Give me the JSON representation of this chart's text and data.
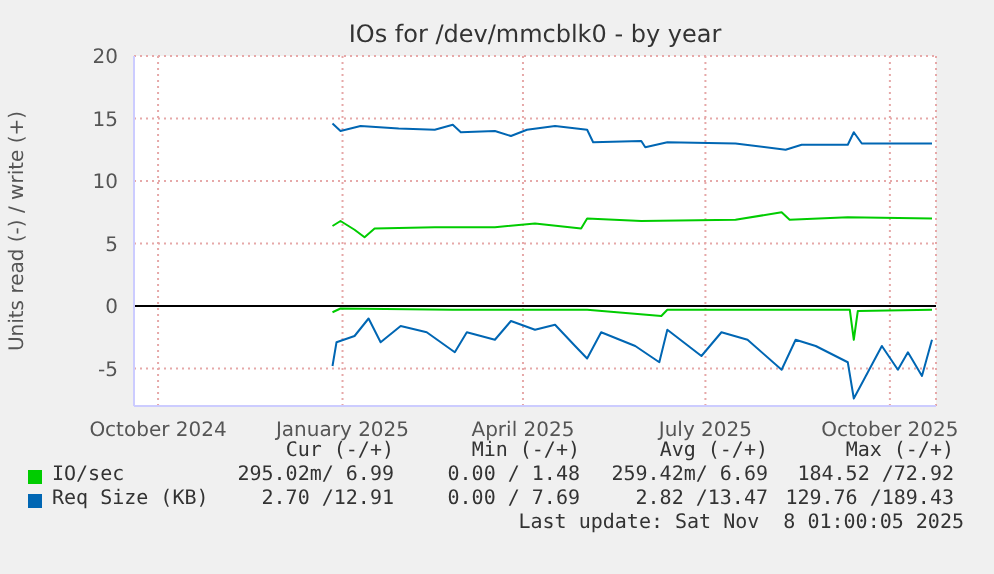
{
  "chart_data": {
    "type": "line",
    "title": "IOs for /dev/mmcblk0 - by year",
    "ylabel": "Units read (-) / write (+)",
    "xlim": [
      "2024-10-04",
      "2025-11-08"
    ],
    "xticks": [
      {
        "value": "2024-10-16",
        "label": "October 2024"
      },
      {
        "value": "2025-01-16",
        "label": "January 2025"
      },
      {
        "value": "2025-04-16",
        "label": "April 2025"
      },
      {
        "value": "2025-07-16",
        "label": "July 2025"
      },
      {
        "value": "2025-10-16",
        "label": "October 2025"
      }
    ],
    "ylim": [
      -8,
      20
    ],
    "yticks": [
      -5,
      0,
      5,
      10,
      15,
      20
    ],
    "grid": true,
    "legend": "bottom",
    "marker": "none",
    "line_style": "solid",
    "ref_lines": [
      {
        "axis": "y",
        "value": 0,
        "color": "#000000"
      }
    ],
    "series": [
      {
        "name": "IO/sec",
        "color": "#00cc00",
        "x": [
          "2025-01-11",
          "2025-01-15",
          "2025-01-22",
          "2025-01-27",
          "2025-02-01",
          "2025-03-03",
          "2025-04-02",
          "2025-04-22",
          "2025-05-15",
          "2025-05-18",
          "2025-06-14",
          "2025-07-31",
          "2025-08-23",
          "2025-08-27",
          "2025-09-25",
          "2025-11-06"
        ],
        "values": [
          6.4,
          6.8,
          6.1,
          5.5,
          6.2,
          6.3,
          6.3,
          6.6,
          6.2,
          7.0,
          6.8,
          6.9,
          7.5,
          6.9,
          7.1,
          7.0
        ]
      },
      {
        "color": "#00cc00",
        "x": [
          "2025-01-11",
          "2025-01-15",
          "2025-03-12",
          "2025-05-18",
          "2025-06-24",
          "2025-06-27",
          "2025-09-26",
          "2025-09-28",
          "2025-09-30",
          "2025-11-06"
        ],
        "values": [
          -0.5,
          -0.2,
          -0.3,
          -0.3,
          -0.8,
          -0.3,
          -0.3,
          -2.7,
          -0.4,
          -0.3
        ]
      },
      {
        "name": "Req Size (KB)",
        "color": "#0066b3",
        "x": [
          "2025-01-11",
          "2025-01-15",
          "2025-01-25",
          "2025-02-13",
          "2025-03-03",
          "2025-03-12",
          "2025-03-16",
          "2025-04-02",
          "2025-04-10",
          "2025-04-18",
          "2025-05-02",
          "2025-05-18",
          "2025-05-21",
          "2025-06-14",
          "2025-06-16",
          "2025-06-27",
          "2025-07-31",
          "2025-08-25",
          "2025-09-02",
          "2025-09-25",
          "2025-09-28",
          "2025-10-02",
          "2025-11-06"
        ],
        "values": [
          14.6,
          14.0,
          14.4,
          14.2,
          14.1,
          14.5,
          13.9,
          14.0,
          13.6,
          14.1,
          14.4,
          14.1,
          13.1,
          13.2,
          12.7,
          13.1,
          13.0,
          12.5,
          12.9,
          12.9,
          13.9,
          13.0,
          13.0
        ]
      },
      {
        "color": "#0066b3",
        "x": [
          "2025-01-11",
          "2025-01-13",
          "2025-01-22",
          "2025-01-29",
          "2025-02-04",
          "2025-02-14",
          "2025-02-27",
          "2025-03-13",
          "2025-03-19",
          "2025-04-02",
          "2025-04-10",
          "2025-04-22",
          "2025-05-02",
          "2025-05-12",
          "2025-05-18",
          "2025-05-25",
          "2025-06-11",
          "2025-06-23",
          "2025-06-27",
          "2025-07-14",
          "2025-07-24",
          "2025-08-06",
          "2025-08-23",
          "2025-08-30",
          "2025-09-09",
          "2025-09-25",
          "2025-09-28",
          "2025-10-05",
          "2025-10-12",
          "2025-10-20",
          "2025-10-25",
          "2025-11-01",
          "2025-11-06"
        ],
        "values": [
          -4.8,
          -2.9,
          -2.4,
          -1.0,
          -2.9,
          -1.6,
          -2.1,
          -3.7,
          -2.1,
          -2.7,
          -1.2,
          -1.9,
          -1.5,
          -3.2,
          -4.2,
          -2.1,
          -3.2,
          -4.5,
          -1.9,
          -4.0,
          -2.1,
          -2.7,
          -5.1,
          -2.7,
          -3.2,
          -4.5,
          -7.4,
          -5.3,
          -3.2,
          -5.1,
          -3.7,
          -5.6,
          -2.7
        ]
      }
    ],
    "annotations": [
      "Cur (-/+)",
      "Min (-/+)",
      "Avg (-/+)",
      "Max (-/+)",
      "295.02m/ 6.99",
      "0.00 / 1.48",
      "259.42m/ 6.69",
      "184.52 /72.92",
      "2.70 /12.91",
      "0.00 / 7.69",
      "2.82 /13.47",
      "129.76 /189.43",
      "Last update: Sat Nov  8 01:00:05 2025"
    ]
  }
}
